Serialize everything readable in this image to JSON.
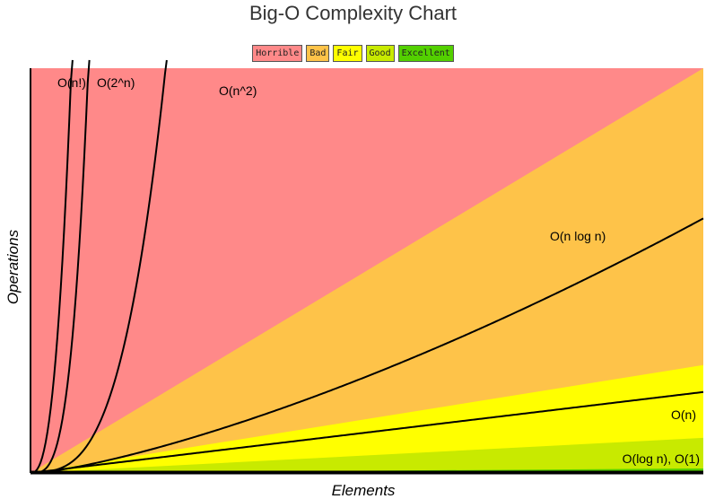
{
  "chart_data": {
    "type": "area",
    "title": "Big-O Complexity Chart",
    "xlabel": "Elements",
    "ylabel": "Operations",
    "grid": false,
    "legend_placement": "top-center",
    "legend": [
      {
        "label": "Horrible",
        "color": "#ff8989"
      },
      {
        "label": "Bad",
        "color": "#fec349"
      },
      {
        "label": "Fair",
        "color": "#ffff00"
      },
      {
        "label": "Good",
        "color": "#c8ea00"
      },
      {
        "label": "Excellent",
        "color": "#53d000"
      }
    ],
    "regions": [
      {
        "name": "Horrible",
        "color": "#ff8989",
        "upper_slope": null
      },
      {
        "name": "Bad",
        "color": "#fec349",
        "upper_slope": 0.6
      },
      {
        "name": "Fair",
        "color": "#ffff00",
        "upper_slope": 0.16
      },
      {
        "name": "Good",
        "color": "#c8ea00",
        "upper_slope": 0.052
      },
      {
        "name": "Excellent",
        "color": "#53d000",
        "upper_slope": 0.0067
      }
    ],
    "x_range": [
      0,
      100
    ],
    "y_range": [
      0,
      60
    ],
    "series": [
      {
        "label": "O(n!)",
        "fn": "factorial"
      },
      {
        "label": "O(2^n)",
        "fn": "exp2"
      },
      {
        "label": "O(n^2)",
        "fn": "square"
      },
      {
        "label": "O(n log n)",
        "fn": "nlogn"
      },
      {
        "label": "O(n)",
        "fn": "linear"
      },
      {
        "label": "O(log n), O(1)",
        "fn": "const"
      }
    ]
  }
}
